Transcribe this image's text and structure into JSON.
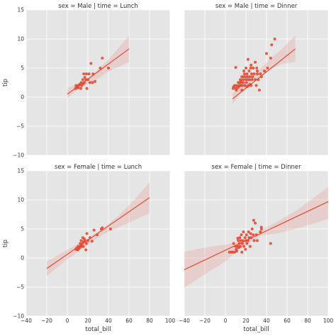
{
  "chart_data": {
    "type": "scatter",
    "layout": "facet-grid",
    "row_variable": "sex",
    "col_variable": "time",
    "xlabel": "total_bill",
    "ylabel": "tip",
    "xlim": [
      -40,
      100
    ],
    "ylim": [
      -10,
      15
    ],
    "xticks": [
      -40,
      -20,
      0,
      20,
      40,
      60,
      80,
      100
    ],
    "yticks": [
      -10,
      -5,
      0,
      5,
      10,
      15
    ],
    "xtick_labels": [
      "−40",
      "−20",
      "0",
      "20",
      "40",
      "60",
      "80",
      "100"
    ],
    "ytick_labels": [
      "−10",
      "−5",
      "0",
      "5",
      "10",
      "15"
    ],
    "grid": true,
    "colors": {
      "background": "#e5e5e5",
      "grid": "#ffffff",
      "points": "#e24a33",
      "line": "#e24a33",
      "band": "#e24a33"
    },
    "facets": [
      {
        "title": "sex = Male | time = Lunch",
        "fit": {
          "x0": 0,
          "y0": 0.5,
          "x1": 60,
          "y1": 8.3
        },
        "band": {
          "x": [
            0,
            10,
            20,
            30,
            40,
            50,
            60
          ],
          "upper": [
            1.5,
            2.3,
            3.3,
            4.8,
            6.5,
            8.5,
            10.6
          ],
          "lower": [
            -0.2,
            1.3,
            2.2,
            3.2,
            4.4,
            5.2,
            6.0
          ]
        },
        "points": [
          [
            8,
            1.5
          ],
          [
            8.5,
            2.0
          ],
          [
            9.5,
            1.8
          ],
          [
            10.3,
            1.6
          ],
          [
            11,
            2.0
          ],
          [
            12,
            2.2
          ],
          [
            13,
            1.5
          ],
          [
            13.5,
            2.5
          ],
          [
            14,
            2.0
          ],
          [
            15,
            3.0
          ],
          [
            15.5,
            2.3
          ],
          [
            16,
            4.0
          ],
          [
            16.5,
            2.5
          ],
          [
            17,
            3.4
          ],
          [
            18,
            3.0
          ],
          [
            18.5,
            4.0
          ],
          [
            19,
            1.5
          ],
          [
            20,
            3.0
          ],
          [
            21,
            4.0
          ],
          [
            22,
            2.5
          ],
          [
            23,
            5.8
          ],
          [
            24.5,
            2.5
          ],
          [
            25,
            4.0
          ],
          [
            27,
            2.7
          ],
          [
            32,
            5.0
          ],
          [
            34,
            6.7
          ],
          [
            40,
            5.0
          ]
        ]
      },
      {
        "title": "sex = Male | time = Dinner",
        "fit": {
          "x0": 7,
          "y0": -0.3,
          "x1": 68,
          "y1": 8.3
        },
        "band": {
          "x": [
            7,
            15,
            25,
            35,
            45,
            55,
            68
          ],
          "upper": [
            0.6,
            1.9,
            3.4,
            5.1,
            6.8,
            8.3,
            10.6
          ],
          "lower": [
            -1.2,
            0.7,
            2.5,
            3.8,
            4.9,
            5.7,
            6.1
          ]
        },
        "points": [
          [
            7.5,
            1.5
          ],
          [
            8,
            1.8
          ],
          [
            9,
            2.0
          ],
          [
            10,
            1.5
          ],
          [
            10.5,
            1.2
          ],
          [
            11,
            2.0
          ],
          [
            12,
            1.6
          ],
          [
            12.5,
            2.5
          ],
          [
            13,
            1.8
          ],
          [
            13.5,
            2.0
          ],
          [
            14,
            2.5
          ],
          [
            14.5,
            3.0
          ],
          [
            15,
            2.0
          ],
          [
            15.5,
            2.5
          ],
          [
            16,
            3.5
          ],
          [
            16.5,
            2.0
          ],
          [
            17,
            3.0
          ],
          [
            17.5,
            2.5
          ],
          [
            18,
            3.5
          ],
          [
            18.5,
            4.0
          ],
          [
            19,
            2.0
          ],
          [
            19.5,
            3.0
          ],
          [
            20,
            3.5
          ],
          [
            20.5,
            2.5
          ],
          [
            21,
            4.0
          ],
          [
            21.5,
            3.0
          ],
          [
            22,
            3.5
          ],
          [
            22.5,
            2.0
          ],
          [
            23,
            4.5
          ],
          [
            23.5,
            3.0
          ],
          [
            24,
            3.5
          ],
          [
            24.5,
            5.0
          ],
          [
            25,
            2.0
          ],
          [
            25.5,
            4.0
          ],
          [
            26,
            3.0
          ],
          [
            26.5,
            3.5
          ],
          [
            27,
            5.0
          ],
          [
            28,
            4.0
          ],
          [
            29,
            3.0
          ],
          [
            30,
            2.0
          ],
          [
            30.5,
            5.0
          ],
          [
            31,
            4.5
          ],
          [
            32,
            3.0
          ],
          [
            33,
            1.2
          ],
          [
            34,
            4.0
          ],
          [
            35,
            3.5
          ],
          [
            38,
            4.5
          ],
          [
            40,
            7.5
          ],
          [
            45,
            9.0
          ],
          [
            48,
            10.0
          ],
          [
            22,
            6.5
          ],
          [
            20,
            5.0
          ],
          [
            25,
            5.5
          ],
          [
            18,
            4.5
          ],
          [
            29,
            6.0
          ],
          [
            16,
            1.2
          ],
          [
            24,
            2.2
          ],
          [
            15,
            2.8
          ],
          [
            21,
            1.8
          ],
          [
            31,
            4.0
          ],
          [
            41,
            5.0
          ],
          [
            44,
            6.7
          ],
          [
            10,
            5.1
          ]
        ]
      },
      {
        "title": "sex = Female | time = Lunch",
        "fit": {
          "x0": -20,
          "y0": -1.8,
          "x1": 80,
          "y1": 10.4
        },
        "band": {
          "x": [
            -20,
            -5,
            10,
            20,
            35,
            50,
            65,
            80
          ],
          "upper": [
            -0.6,
            0.9,
            2.4,
            3.4,
            5.2,
            7.3,
            10.0,
            13.0
          ],
          "lower": [
            -3.1,
            -0.9,
            1.0,
            2.3,
            4.1,
            5.3,
            6.5,
            7.7
          ]
        },
        "points": [
          [
            8.5,
            1.5
          ],
          [
            9,
            1.7
          ],
          [
            10,
            1.4
          ],
          [
            10.5,
            2.0
          ],
          [
            11,
            1.6
          ],
          [
            12,
            1.8
          ],
          [
            12.5,
            2.5
          ],
          [
            13,
            2.0
          ],
          [
            13.5,
            3.0
          ],
          [
            14,
            2.0
          ],
          [
            14.5,
            2.5
          ],
          [
            15,
            3.5
          ],
          [
            15.5,
            2.0
          ],
          [
            16,
            2.8
          ],
          [
            17,
            3.0
          ],
          [
            18,
            1.4
          ],
          [
            18.5,
            2.5
          ],
          [
            19,
            4.2
          ],
          [
            20,
            3.0
          ],
          [
            22,
            3.5
          ],
          [
            24,
            2.9
          ],
          [
            26,
            4.8
          ],
          [
            29,
            4.0
          ],
          [
            33,
            5.0
          ],
          [
            34,
            5.2
          ],
          [
            42,
            5.0
          ],
          [
            16.5,
            3.3
          ]
        ]
      },
      {
        "title": "sex = Female | time = Dinner",
        "fit": {
          "x0": -40,
          "y0": -2.0,
          "x1": 100,
          "y1": 9.7
        },
        "band": {
          "x": [
            -40,
            -20,
            0,
            15,
            25,
            35,
            50,
            70,
            100
          ],
          "upper": [
            1.1,
            1.8,
            2.3,
            2.8,
            3.6,
            4.8,
            6.2,
            8.3,
            12.2
          ],
          "lower": [
            -5.1,
            -2.8,
            -0.6,
            1.8,
            2.8,
            3.9,
            4.2,
            5.1,
            6.7
          ]
        },
        "points": [
          [
            4,
            1.0
          ],
          [
            6,
            1.0
          ],
          [
            7,
            1.0
          ],
          [
            8,
            2.5
          ],
          [
            9,
            1.0
          ],
          [
            10,
            2.0
          ],
          [
            10.5,
            1.5
          ],
          [
            11,
            1.2
          ],
          [
            12,
            2.0
          ],
          [
            12.5,
            3.0
          ],
          [
            13,
            1.8
          ],
          [
            13.5,
            2.5
          ],
          [
            14,
            3.5
          ],
          [
            14.5,
            2.0
          ],
          [
            15,
            3.0
          ],
          [
            15.5,
            4.0
          ],
          [
            16,
            1.0
          ],
          [
            16.5,
            2.5
          ],
          [
            17,
            3.0
          ],
          [
            17.5,
            4.5
          ],
          [
            18,
            2.0
          ],
          [
            19,
            3.5
          ],
          [
            19.5,
            1.5
          ],
          [
            20,
            3.0
          ],
          [
            20.5,
            4.0
          ],
          [
            21,
            2.5
          ],
          [
            22,
            3.0
          ],
          [
            22.5,
            4.5
          ],
          [
            23,
            3.5
          ],
          [
            24,
            2.0
          ],
          [
            24.5,
            4.2
          ],
          [
            25,
            3.5
          ],
          [
            26,
            5.0
          ],
          [
            27,
            4.0
          ],
          [
            27.5,
            6.5
          ],
          [
            28,
            3.0
          ],
          [
            29,
            6.0
          ],
          [
            30,
            4.0
          ],
          [
            31,
            3.0
          ],
          [
            34,
            4.5
          ],
          [
            35,
            5.0
          ],
          [
            44,
            2.5
          ],
          [
            35,
            5.3
          ],
          [
            12,
            3.4
          ]
        ]
      }
    ]
  }
}
